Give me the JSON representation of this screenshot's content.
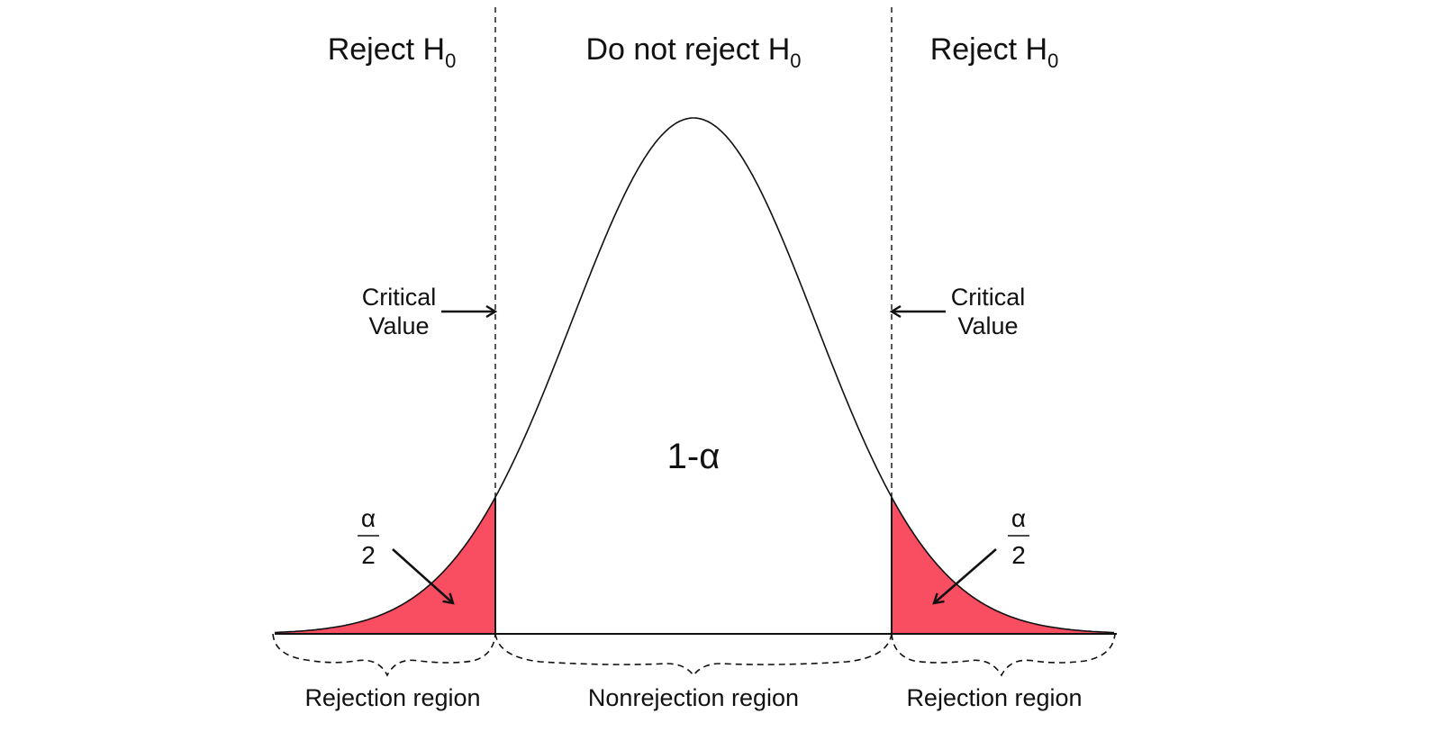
{
  "header": {
    "left": {
      "text": "Reject H",
      "sub": "0"
    },
    "middle": {
      "text": "Do not reject H",
      "sub": "0"
    },
    "right": {
      "text": "Reject H",
      "sub": "0"
    }
  },
  "critical_value": {
    "left": {
      "line1": "Critical",
      "line2": "Value"
    },
    "right": {
      "line1": "Critical",
      "line2": "Value"
    }
  },
  "tail_fraction": {
    "left": {
      "numerator": "α",
      "denominator": "2"
    },
    "right": {
      "numerator": "α",
      "denominator": "2"
    }
  },
  "center_label": "1-α",
  "regions": {
    "left": "Rejection region",
    "middle": "Nonrejection region",
    "right": "Rejection region"
  },
  "colors": {
    "tail_fill": "#f94d62",
    "curve": "#111111",
    "guide": "#111111"
  }
}
